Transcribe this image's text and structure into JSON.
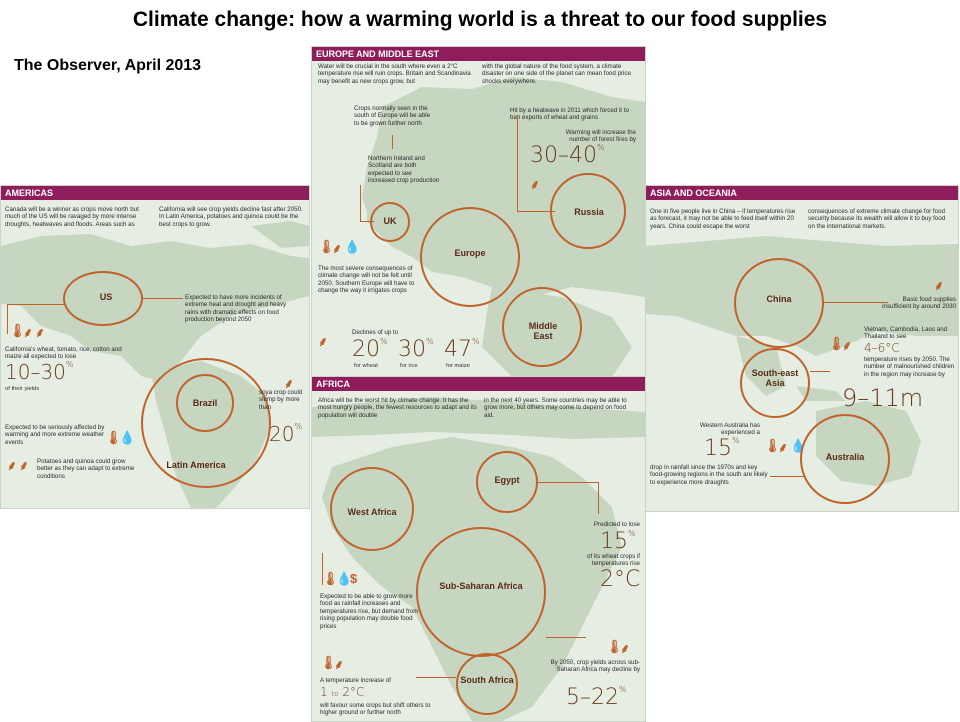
{
  "page": {
    "title": "Climate change: how a warming world is a threat to our food supplies",
    "subtitle": "The Observer,  April 2013"
  },
  "europe": {
    "header": "EUROPE AND MIDDLE EAST",
    "intro_left": "Water will be crucial in the south where even a 2°C temperature rise will ruin crops. Britain and Scandinavia may benefit as new crops grow, but",
    "intro_right": "with the global nature of the food system, a climate disaster on one side of the planet can mean food price shocks everywhere.",
    "crops_north": "Crops normally seen in the south of Europe will be able to be grown further north",
    "ni_scotland": "Northern Ireland and Scotland are both expected to see increased crop production",
    "heatwave": "Hit by a heatwave in 2011 which forced it to ban exports of wheat and grains",
    "forest_fires": "Warming will increase the number of forest fires by",
    "forest_value": "30–40",
    "forest_unit": "%",
    "severe": "The most severe consequences of climate change will not be felt until 2050. Southern Europe will have to change the way it irrigates crops",
    "declines": "Declines of up to",
    "wheat_value": "20",
    "wheat_label": "for wheat",
    "rice_value": "30",
    "rice_label": "for rice",
    "maize_value": "47",
    "maize_label": "for maize",
    "pct": "%",
    "labels": {
      "uk": "UK",
      "europe": "Europe",
      "russia": "Russia",
      "middle_east": "Middle East"
    }
  },
  "americas": {
    "header": "AMERICAS",
    "intro_left": "Canada will be a winner as crops move north but much of the US will be ravaged by more intense droughts, heatwaves and floods. Areas such as",
    "intro_right": "California will see crop yields decline fast after 2050. In Latin America, potatoes and quinoa could be the best crops to grow.",
    "us_note": "Expected to have more incidents of extreme heat and drought and heavy rains with dramatic effects on food production beyond 2050",
    "california": "California's wheat, tomato, rice, cotton and maize all expected to lose",
    "yield_value": "10–30",
    "yield_unit": "%",
    "yield_label": "of their yields",
    "soya": "soya crop could slump by more than",
    "soya_value": "20",
    "soya_unit": "%",
    "warming": "Expected to be seriously affected by warming and more extreme weather events",
    "potatoes": "Potatoes and quinoa could grow better as they can adapt to extreme conditions",
    "labels": {
      "us": "US",
      "brazil": "Brazil",
      "latin_america": "Latin America"
    }
  },
  "asia": {
    "header": "ASIA AND OCEANIA",
    "intro_left": "One in five people live in China – if temperatures rise as forecast, it may not be able to feed itself within 20 years. China could escape the worst",
    "intro_right": "consequences of extreme climate change for food security because its wealth will allow it to buy food on the international markets.",
    "basic_food": "Basic food supplies insufficient by around 2030",
    "vietnam": "Vietnam, Cambodia, Laos and Thailand to see",
    "temp_value": "4–6°C",
    "temp_label": "temperature rises by 2050. The number of malnourished children in the region may increase by",
    "children_value": "9–11m",
    "western_aus": "Western Australia has experienced a",
    "rain_value": "15",
    "rain_unit": "%",
    "rain_label": "drop in rainfall since the 1970s and key food-growing regions in the south are likely to experience more draughts",
    "labels": {
      "china": "China",
      "se_asia": "South-east Asia",
      "australia": "Australia"
    }
  },
  "africa": {
    "header": "AFRICA",
    "intro_left": "Africa will be the worst hit by climate change. It has the most hungry people, the fewest resources to adapt and its population will double",
    "intro_right": "in the next 40 years. Some countries may be able to grow more, but others may come to depend on food aid.",
    "egypt_lose": "Predicted to lose",
    "egypt_value": "15",
    "egypt_unit": "%",
    "egypt_label": "of its wheat crops if temperatures rise",
    "egypt_temp": "2°C",
    "west_africa": "Expected to be able to grow more food as rainfall increases and temperatures rise, but demand from rising population may double food prices",
    "by2050": "By 2050, crop yields across sub-Saharan Africa may decline by",
    "ssa_value": "5–22",
    "ssa_unit": "%",
    "temp_increase": "A temperature increase of",
    "temp_range_a": "1",
    "temp_range_to": "to",
    "temp_range_b": "2°C",
    "temp_effect": "will favour some crops but shift others to higher ground or further north",
    "labels": {
      "egypt": "Egypt",
      "west_africa": "West Africa",
      "ssa": "Sub-Saharan Africa",
      "south_africa": "South Africa"
    }
  },
  "colors": {
    "header": "#8f1d5c",
    "accent": "#c0622a",
    "map_bg": "#e6eee4",
    "land": "#c6d6c0"
  },
  "icons": [
    "thermometer-icon",
    "wheat-icon",
    "water-drop-icon",
    "dollar-icon"
  ]
}
